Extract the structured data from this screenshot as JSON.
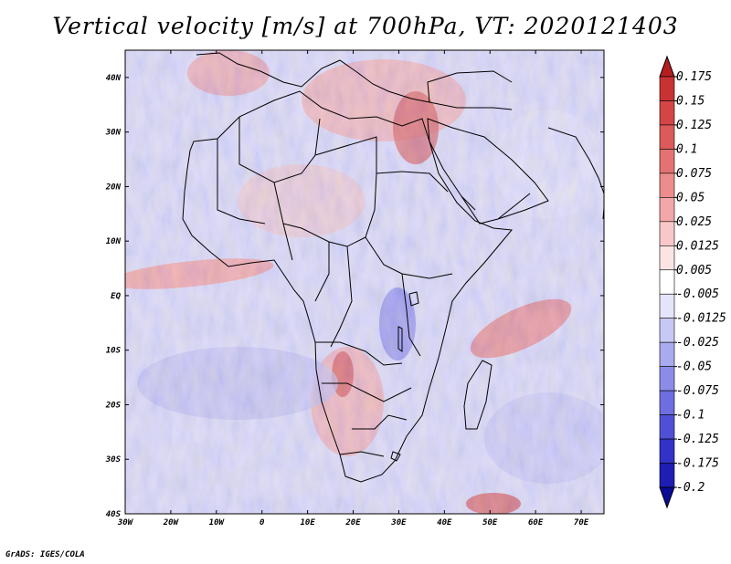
{
  "title": "Vertical velocity [m/s] at 700hPa, VT: 2020121403",
  "credit": "GrADS: IGES/COLA",
  "map": {
    "region": "Africa",
    "lon_range": [
      -30,
      75
    ],
    "lat_range": [
      -40,
      45
    ],
    "lon_ticks": [
      "30W",
      "20W",
      "10W",
      "0",
      "10E",
      "20E",
      "30E",
      "40E",
      "50E",
      "60E",
      "70E"
    ],
    "lat_ticks": [
      "40N",
      "30N",
      "20N",
      "10N",
      "EQ",
      "10S",
      "20S",
      "30S",
      "40S"
    ],
    "lon_values": [
      -30,
      -20,
      -10,
      0,
      10,
      20,
      30,
      40,
      50,
      60,
      70
    ],
    "lat_values": [
      40,
      30,
      20,
      10,
      0,
      -10,
      -20,
      -30,
      -40
    ]
  },
  "colorbar": {
    "labels": [
      "0.175",
      "0.15",
      "0.125",
      "0.1",
      "0.075",
      "0.05",
      "0.025",
      "0.0125",
      "0.005",
      "-0.005",
      "-0.0125",
      "-0.025",
      "-0.05",
      "-0.075",
      "-0.1",
      "-0.125",
      "-0.175",
      "-0.2"
    ],
    "colors": [
      "#b41e1e",
      "#c83232",
      "#d24646",
      "#dc5a5a",
      "#e47272",
      "#ec8c8c",
      "#f2a8a8",
      "#f8c8c8",
      "#fde4e4",
      "#ffffff",
      "#e4e4fa",
      "#c8c8f4",
      "#aaaaf0",
      "#8c8ce8",
      "#6e6ee0",
      "#5050d6",
      "#3232c8",
      "#1e1eb4",
      "#0a0a96"
    ]
  }
}
